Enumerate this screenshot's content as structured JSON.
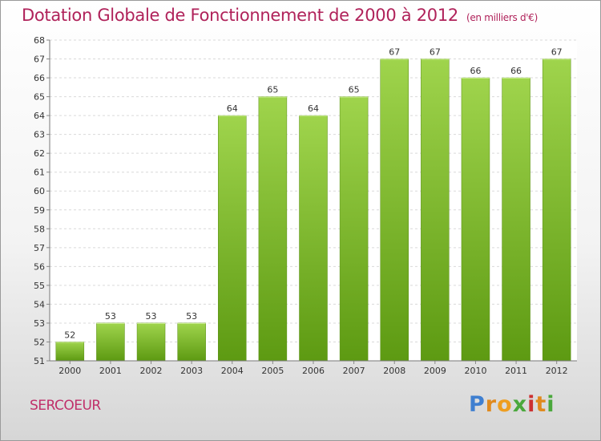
{
  "chart_data": {
    "type": "bar",
    "title": "Dotation Globale de Fonctionnement de 2000 à 2012",
    "unit": "(en milliers d'€)",
    "categories": [
      "2000",
      "2001",
      "2002",
      "2003",
      "2004",
      "2005",
      "2006",
      "2007",
      "2008",
      "2009",
      "2010",
      "2011",
      "2012"
    ],
    "values": [
      52,
      53,
      53,
      53,
      64,
      65,
      64,
      65,
      67,
      67,
      66,
      66,
      67
    ],
    "ylim": [
      51,
      68
    ],
    "yticks": [
      51,
      52,
      53,
      54,
      55,
      56,
      57,
      58,
      59,
      60,
      61,
      62,
      63,
      64,
      65,
      66,
      67,
      68
    ],
    "grid": true,
    "xlabel": "",
    "ylabel": ""
  },
  "footer": {
    "town": "SERCOEUR",
    "brand_letters": [
      "P",
      "r",
      "o",
      "x",
      "i",
      "t",
      "i"
    ]
  },
  "colors": {
    "title": "#b0225a",
    "bar_light": "#9fd44c",
    "bar_dark": "#5d9a12",
    "brand": [
      "#3f7fd0",
      "#e08a1e",
      "#ee9e20",
      "#4aa83c",
      "#cc3030",
      "#e08a1e",
      "#4aa83c"
    ]
  }
}
